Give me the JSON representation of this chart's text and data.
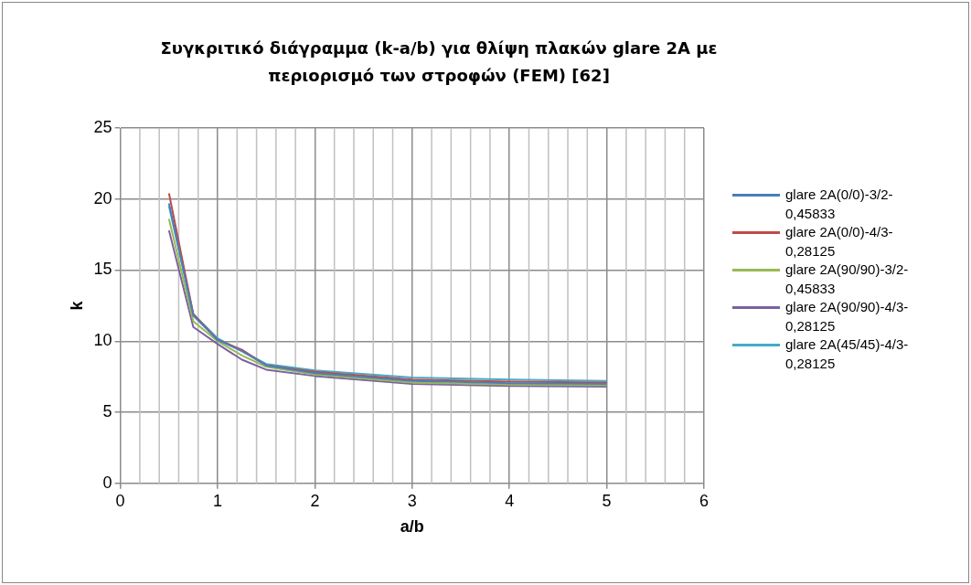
{
  "chart_data": {
    "type": "line",
    "title": "Συγκριτικό διάγραμμα (k-a/b) για θλίψη πλακών glare 2A με περιορισμό των στροφών (FEM) [62]",
    "xlabel": "a/b",
    "ylabel": "k",
    "x": [
      0.5,
      0.75,
      1,
      1.25,
      1.5,
      2,
      3,
      4,
      5
    ],
    "series": [
      {
        "name": "glare 2A(0/0)-3/2-0,45833",
        "color": "#4a7ebb",
        "values": [
          19.7,
          11.8,
          10.1,
          9.3,
          8.3,
          7.75,
          7.2,
          7.05,
          7.0
        ]
      },
      {
        "name": "glare 2A(0/0)-4/3-0,28125",
        "color": "#be4b48",
        "values": [
          20.4,
          11.9,
          10.1,
          9.4,
          8.3,
          7.85,
          7.3,
          7.15,
          7.1
        ]
      },
      {
        "name": "glare 2A(90/90)-3/2-0,45833",
        "color": "#98b954",
        "values": [
          18.6,
          11.4,
          10.0,
          9.0,
          8.2,
          7.65,
          7.1,
          6.95,
          6.9
        ]
      },
      {
        "name": "glare 2A(90/90)-4/3-0,28125",
        "color": "#7d60a0",
        "values": [
          17.8,
          11.0,
          9.8,
          8.7,
          8.0,
          7.55,
          7.0,
          6.85,
          6.8
        ]
      },
      {
        "name": "glare 2A(45/45)-4/3-0,28125",
        "color": "#46aac5",
        "values": [
          19.5,
          11.9,
          10.2,
          9.3,
          8.4,
          7.95,
          7.45,
          7.3,
          7.2
        ]
      }
    ],
    "xlim": [
      0,
      6
    ],
    "xticks": [
      0,
      1,
      2,
      3,
      4,
      5,
      6
    ],
    "ylim": [
      0,
      25
    ],
    "yticks": [
      0,
      5,
      10,
      15,
      20,
      25
    ],
    "grid": true,
    "legend": "right",
    "marker": "none",
    "line_style": "solid"
  }
}
